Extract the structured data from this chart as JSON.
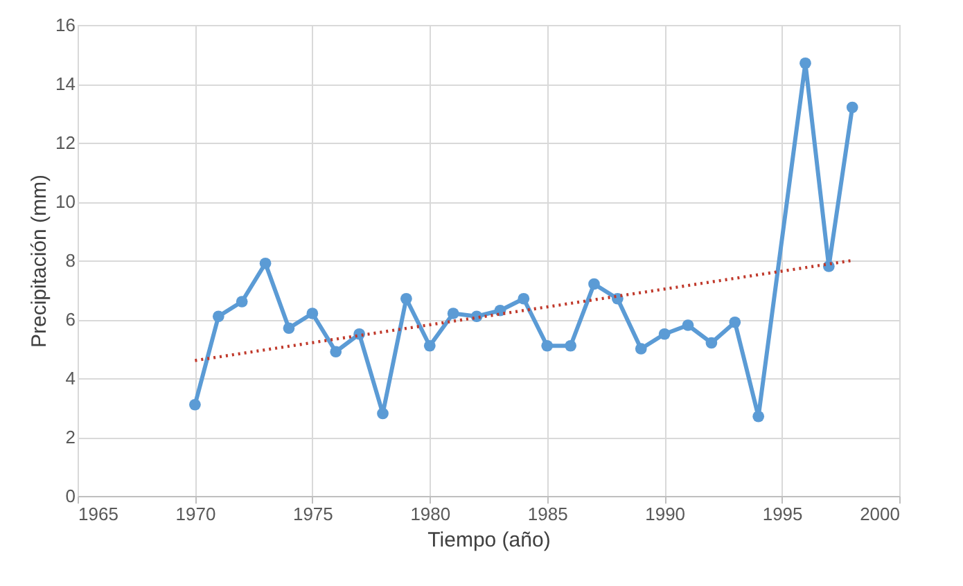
{
  "chart_data": {
    "type": "line",
    "xlabel": "Tiempo (año)",
    "ylabel": "Precipitación (mm)",
    "xlim": [
      1965,
      2000
    ],
    "xticks": [
      1965,
      1970,
      1975,
      1980,
      1985,
      1990,
      1995,
      2000
    ],
    "ylim": [
      0,
      16
    ],
    "yticks": [
      0,
      2,
      4,
      6,
      8,
      10,
      12,
      14,
      16
    ],
    "grid": true,
    "legend": false,
    "marker": "circle",
    "line_style": "solid",
    "series": [
      {
        "color": "#5b9bd5",
        "x": [
          1970,
          1971,
          1972,
          1973,
          1974,
          1975,
          1976,
          1977,
          1978,
          1979,
          1980,
          1981,
          1982,
          1983,
          1984,
          1985,
          1986,
          1987,
          1988,
          1989,
          1990,
          1991,
          1992,
          1993,
          1994,
          1996,
          1997,
          1998
        ],
        "values": [
          3.1,
          6.1,
          6.6,
          7.9,
          5.7,
          6.2,
          4.9,
          5.5,
          2.8,
          6.7,
          5.1,
          6.2,
          6.1,
          6.3,
          6.7,
          5.1,
          5.1,
          7.2,
          6.7,
          5.0,
          5.5,
          5.8,
          5.2,
          5.9,
          2.7,
          14.7,
          7.8,
          13.2
        ]
      },
      {
        "type": "line",
        "color": "#c0392b",
        "line_style": "dotted",
        "marker": "none",
        "x": [
          1970,
          1998
        ],
        "values": [
          4.6,
          8.0
        ]
      }
    ]
  }
}
